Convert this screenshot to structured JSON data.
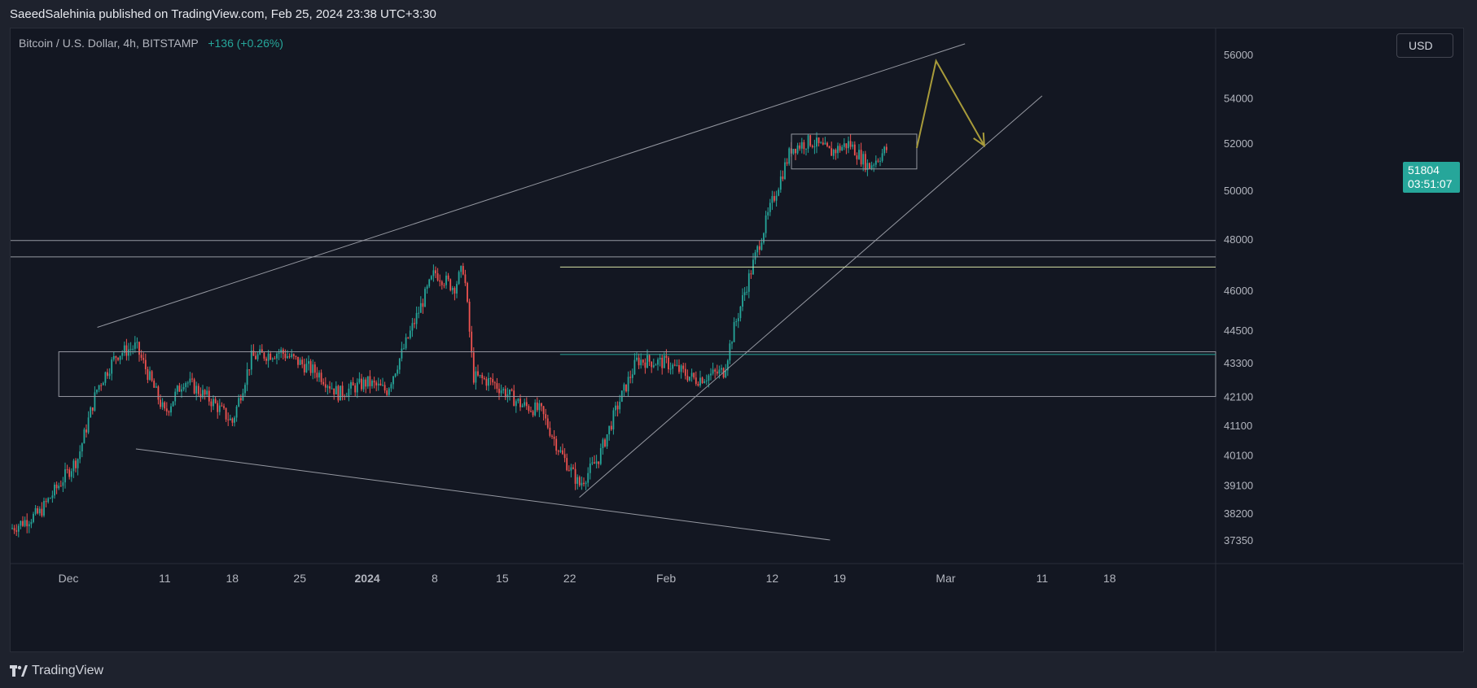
{
  "header": {
    "published_text": "SaeedSalehinia published on TradingView.com, Feb 25, 2024 23:38 UTC+3:30"
  },
  "symbol": {
    "name": "Bitcoin / U.S. Dollar, 4h, BITSTAMP",
    "change": "+136 (+0.26%)"
  },
  "currency_label": "USD",
  "last_price": {
    "value": "51804",
    "countdown": "03:51:07"
  },
  "footer": {
    "brand": "TradingView"
  },
  "colors": {
    "background": "#131722",
    "up": "#26a69a",
    "down": "#ef5350",
    "drawing_lines": "#9598a1",
    "projection": "#a89b3a",
    "level_yellow": "#d7e3a6",
    "level_teal": "#26a69a"
  },
  "chart_data": {
    "type": "candlestick",
    "title": "Bitcoin / U.S. Dollar, 4h, BITSTAMP",
    "interval": "4h",
    "x_tick_labels": [
      "Dec",
      "11",
      "18",
      "25",
      "2024",
      "8",
      "15",
      "22",
      "Feb",
      "12",
      "19",
      "Mar",
      "11",
      "18"
    ],
    "y_tick_labels": [
      "56000",
      "54000",
      "52000",
      "50000",
      "48000",
      "46000",
      "44500",
      "43300",
      "42100",
      "41100",
      "40100",
      "39100",
      "38200",
      "37350"
    ],
    "y_scale": "log",
    "ylim": [
      37350,
      56000
    ],
    "last_price": 51804,
    "price_path": {
      "x": [
        "2023-11-25",
        "2023-11-28",
        "2023-12-02",
        "2023-12-04",
        "2023-12-06",
        "2023-12-08",
        "2023-12-11",
        "2023-12-13",
        "2023-12-16",
        "2023-12-18",
        "2023-12-20",
        "2023-12-23",
        "2023-12-27",
        "2023-12-29",
        "2024-01-01",
        "2024-01-03",
        "2024-01-05",
        "2024-01-08",
        "2024-01-10",
        "2024-01-11",
        "2024-01-12",
        "2024-01-14",
        "2024-01-17",
        "2024-01-19",
        "2024-01-21",
        "2024-01-23",
        "2024-01-25",
        "2024-01-27",
        "2024-01-29",
        "2024-02-01",
        "2024-02-04",
        "2024-02-07",
        "2024-02-08",
        "2024-02-10",
        "2024-02-12",
        "2024-02-14",
        "2024-02-16",
        "2024-02-18",
        "2024-02-20",
        "2024-02-22",
        "2024-02-24"
      ],
      "y": [
        37700,
        38200,
        40000,
        42400,
        43600,
        43900,
        41500,
        42700,
        41900,
        41200,
        43500,
        43700,
        42900,
        42200,
        42600,
        42300,
        44000,
        46700,
        46100,
        46900,
        42800,
        42600,
        41800,
        41600,
        40200,
        39100,
        40000,
        41800,
        43400,
        43300,
        42700,
        43000,
        44500,
        47000,
        49500,
        51800,
        52100,
        51600,
        52000,
        51000,
        51800
      ]
    },
    "annotations": {
      "upper_trendline": {
        "from": [
          "2023-12-04",
          44600
        ],
        "to": [
          "2024-03-03",
          56500
        ]
      },
      "lower_trendline": {
        "from": [
          "2023-12-08",
          40300
        ],
        "to": [
          "2024-02-18",
          37350
        ]
      },
      "support_trendline": {
        "from": [
          "2024-01-23",
          38700
        ],
        "to": [
          "2024-03-11",
          54100
        ]
      },
      "upper_range_box": {
        "from": [
          "2024-02-14",
          52400
        ],
        "to": [
          "2024-02-27",
          50900
        ]
      },
      "lower_range_box": {
        "from": [
          "2023-11-30",
          43700
        ],
        "to": [
          "2024-03-29",
          42100
        ]
      },
      "horizontal_levels": [
        47950,
        47300
      ],
      "yellow_level": 46900,
      "teal_level": 43600,
      "projection_path": [
        [
          "2024-02-27",
          51800
        ],
        [
          "2024-02-29",
          55700
        ],
        [
          "2024-03-05",
          51900
        ]
      ]
    }
  }
}
